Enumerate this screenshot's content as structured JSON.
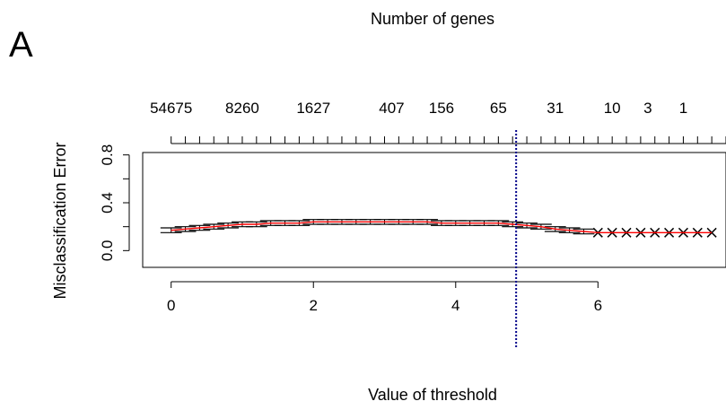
{
  "panel_label": "A",
  "chart_data": {
    "type": "line",
    "top_axis_label": "Number of genes",
    "xlabel": "Value of threshold",
    "ylabel": "Misclassification Error",
    "xlim": [
      -0.4,
      7.8
    ],
    "ylim": [
      -0.14,
      0.82
    ],
    "x_ticks": [
      0,
      2,
      4,
      6
    ],
    "y_ticks": [
      0.0,
      0.4,
      0.8
    ],
    "y_tick_labels": [
      "0.0",
      "0.4",
      "0.8"
    ],
    "top_ticks": [
      {
        "x": 0.0,
        "label": "54675"
      },
      {
        "x": 1.0,
        "label": "8260"
      },
      {
        "x": 2.0,
        "label": "1627"
      },
      {
        "x": 3.1,
        "label": "407"
      },
      {
        "x": 3.8,
        "label": "156"
      },
      {
        "x": 4.6,
        "label": "65"
      },
      {
        "x": 5.4,
        "label": "31"
      },
      {
        "x": 6.2,
        "label": "10"
      },
      {
        "x": 6.7,
        "label": "3"
      },
      {
        "x": 7.2,
        "label": "1"
      }
    ],
    "top_minor_tick_step": 0.2,
    "threshold_line_x": 4.85,
    "series": [
      {
        "x": [
          0.0,
          0.2,
          0.4,
          0.6,
          0.8,
          1.0,
          1.2,
          1.4,
          1.6,
          1.8,
          2.0,
          2.2,
          2.4,
          2.6,
          2.8,
          3.0,
          3.2,
          3.4,
          3.6,
          3.8,
          4.0,
          4.2,
          4.4,
          4.6,
          4.8,
          5.0,
          5.2,
          5.4,
          5.6,
          5.8,
          6.0,
          6.2,
          6.4,
          6.6,
          6.8,
          7.0,
          7.2,
          7.4,
          7.6
        ],
        "y": [
          0.17,
          0.18,
          0.19,
          0.2,
          0.21,
          0.22,
          0.22,
          0.23,
          0.23,
          0.23,
          0.24,
          0.24,
          0.24,
          0.24,
          0.24,
          0.24,
          0.24,
          0.24,
          0.24,
          0.23,
          0.23,
          0.23,
          0.23,
          0.23,
          0.22,
          0.21,
          0.2,
          0.18,
          0.17,
          0.16,
          0.15,
          0.15,
          0.15,
          0.15,
          0.15,
          0.15,
          0.15,
          0.15,
          0.15
        ],
        "se": [
          0.02,
          0.02,
          0.02,
          0.02,
          0.02,
          0.02,
          0.02,
          0.02,
          0.02,
          0.02,
          0.02,
          0.02,
          0.02,
          0.02,
          0.02,
          0.02,
          0.02,
          0.02,
          0.02,
          0.02,
          0.02,
          0.02,
          0.02,
          0.02,
          0.02,
          0.02,
          0.02,
          0.02,
          0.02,
          0.02,
          0.0,
          0.0,
          0.0,
          0.0,
          0.0,
          0.0,
          0.0,
          0.0,
          0.0
        ],
        "color": "#ff0000",
        "errorbar_color": "#000000"
      }
    ],
    "threshold_line_color": "#00008b",
    "grid": false,
    "legend": "none"
  }
}
